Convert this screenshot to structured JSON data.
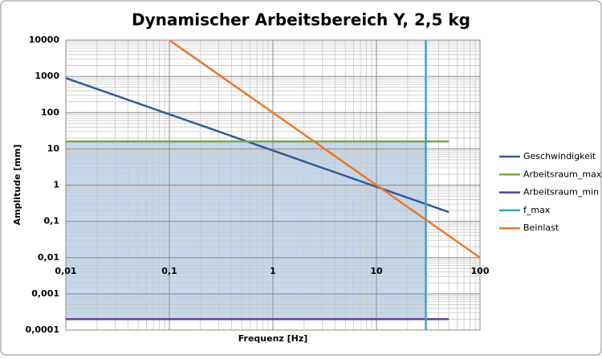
{
  "chart_data": {
    "type": "line",
    "title": "Dynamischer Arbeitsbereich Y, 2,5 kg",
    "x_label": "Frequenz [Hz]",
    "y_label": "Amplitude [mm]",
    "log_x": true,
    "log_y": true,
    "grid": true,
    "minor_grid": true,
    "legend": "right",
    "xlim": [
      0.01,
      100
    ],
    "ylim": [
      0.0001,
      10000
    ],
    "xticks": [
      {
        "value": 0.01,
        "label": "0,01"
      },
      {
        "value": 0.1,
        "label": "0,1"
      },
      1,
      10,
      100
    ],
    "yticks": [
      {
        "value": 0.0001,
        "label": "0,0001"
      },
      {
        "value": 0.001,
        "label": "0,001"
      },
      {
        "value": 0.01,
        "label": "0,01"
      },
      {
        "value": 0.1,
        "label": "0,1"
      },
      1,
      10,
      100,
      1000,
      10000
    ],
    "shade_color": "#c6d7ea",
    "series": [
      {
        "name": "Geschwindigkeit",
        "color": "#2f5c98",
        "x": [
          0.01,
          50
        ],
        "values": [
          900,
          0.18
        ]
      },
      {
        "name": "Arbeitsraum_max",
        "color": "#79a93b",
        "x": [
          0.01,
          50
        ],
        "values": [
          16,
          16
        ]
      },
      {
        "name": "Arbeitsraum_min",
        "color": "#60408f",
        "x": [
          0.01,
          50
        ],
        "values": [
          0.0002,
          0.0002
        ]
      },
      {
        "name": "f_max",
        "color": "#41a1be",
        "x": [
          30,
          30
        ],
        "values": [
          0.0001,
          10000
        ]
      },
      {
        "name": "Beinlast",
        "color": "#e8792b",
        "x": [
          0.1,
          100
        ],
        "values": [
          10000,
          0.01
        ]
      }
    ]
  }
}
